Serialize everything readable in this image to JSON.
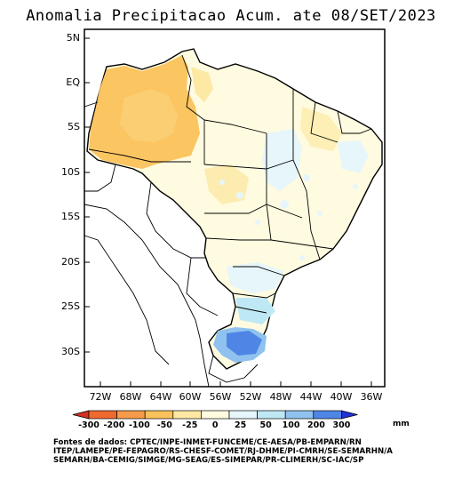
{
  "title": "Anomalia Precipitacao Acum. ate 08/SET/2023",
  "lat_ticks": [
    "5N",
    "EQ",
    "5S",
    "10S",
    "15S",
    "20S",
    "25S",
    "30S"
  ],
  "lon_ticks": [
    "72W",
    "68W",
    "64W",
    "60W",
    "56W",
    "52W",
    "48W",
    "44W",
    "40W",
    "36W"
  ],
  "colorbar": {
    "unit": "mm",
    "labels": [
      "-300",
      "-200",
      "-100",
      "-50",
      "-25",
      "0",
      "25",
      "50",
      "100",
      "200",
      "300"
    ],
    "colors": [
      "#d62f1e",
      "#ee6a2e",
      "#f79a4a",
      "#fbc25b",
      "#fde9a4",
      "#fffbe0",
      "#e6f6fb",
      "#bfe8f5",
      "#8fc2ee",
      "#4f86e6",
      "#2330d8"
    ]
  },
  "source_lines": [
    "Fontes de dados: CPTEC/INPE-INMET-FUNCEME/CE-AESA/PB-EMPARN/RN",
    "ITEP/LAMEPE/PE-FEPAGRO/RS-CHESF-COMET/RJ-DHME/PI-CMRH/SE-SEMARHN/A",
    "SEMARH/BA-CEMIG/SIMGE/MG-SEAG/ES-SIMEPAR/PR-CLIMERH/SC-IAC/SP"
  ]
}
